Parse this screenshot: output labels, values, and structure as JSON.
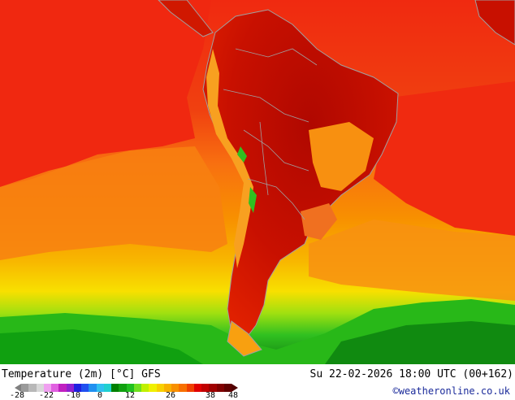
{
  "title": "Temperature (2m) [°C] GFS",
  "datetime": "Su 22-02-2026 18:00 UTC (00+162)",
  "credit": "©weatheronline.co.uk",
  "legend": {
    "ticks": [
      "-28",
      "-22",
      "-10",
      "0",
      "12",
      "26",
      "38",
      "48"
    ],
    "colors": [
      "#9a9a9a",
      "#b8b8b8",
      "#d8d8d8",
      "#f0a0f0",
      "#e060e0",
      "#c020c0",
      "#9020d0",
      "#2020e0",
      "#2050f0",
      "#2090f0",
      "#30c0f0",
      "#20d0d0",
      "#008000",
      "#10a010",
      "#20c020",
      "#70e020",
      "#c0f000",
      "#f0f000",
      "#f8d000",
      "#f8b000",
      "#f89000",
      "#f87000",
      "#f04000",
      "#e00000",
      "#c00000",
      "#a00000",
      "#800000",
      "#600000"
    ],
    "left_arrow_color": "#808080",
    "right_arrow_color": "#500000"
  },
  "map": {
    "ocean_base_color": "#ee3a10",
    "land_hot_color": "#b01000",
    "coast_color": "#a0a0a0"
  }
}
